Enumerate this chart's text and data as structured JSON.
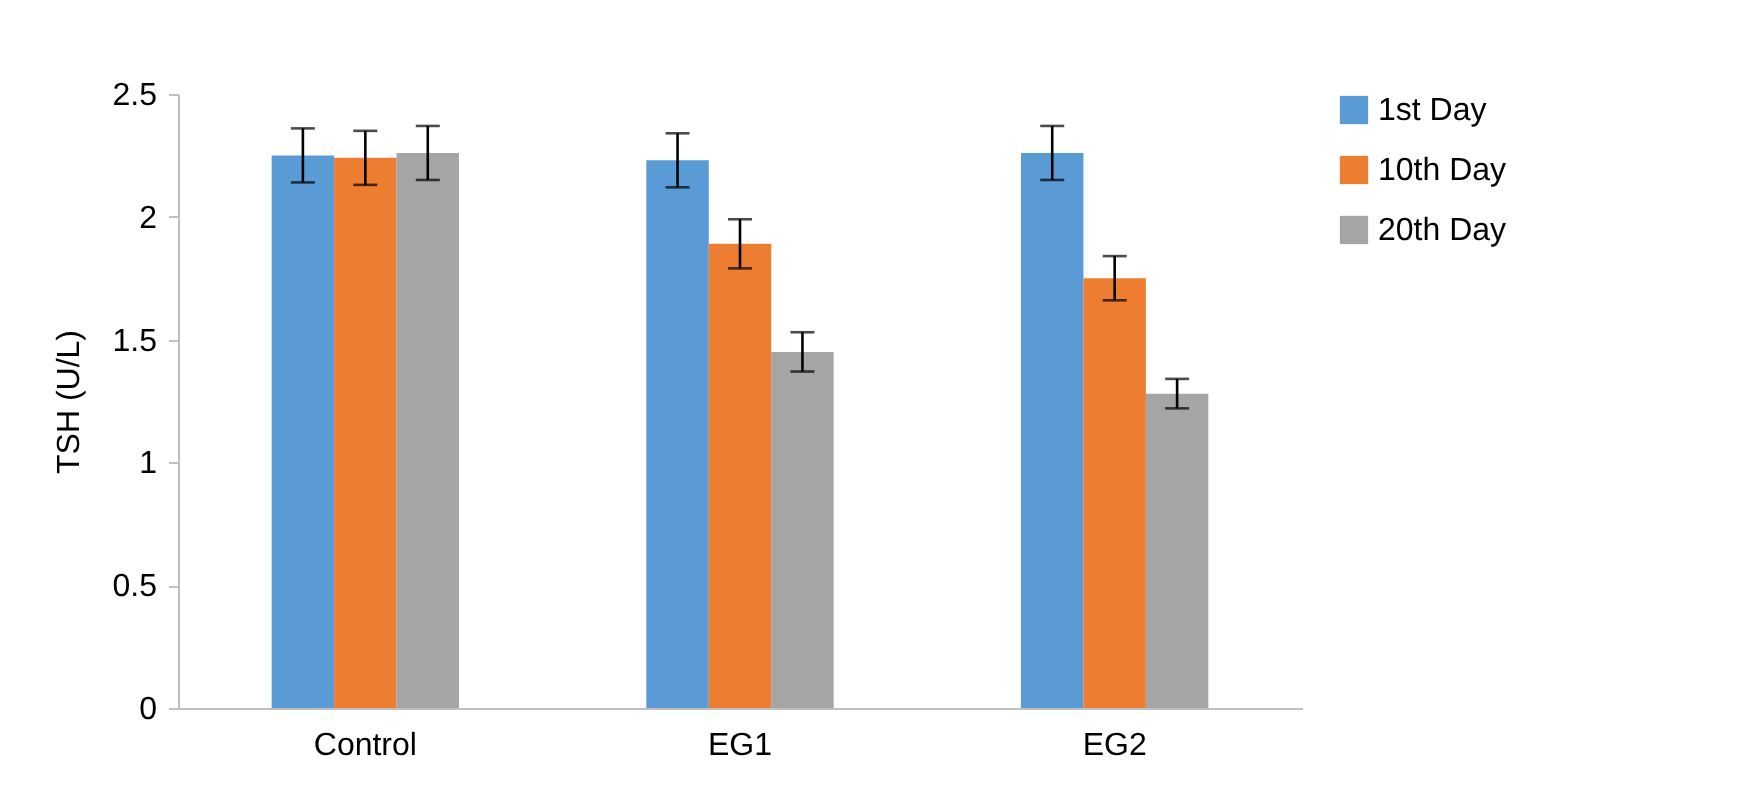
{
  "chart_data": {
    "type": "bar",
    "ylabel": "TSH (U/L)",
    "categories": [
      "Control",
      "EG1",
      "EG2"
    ],
    "series": [
      {
        "name": "1st Day",
        "color": "#5b9bd5",
        "values": [
          2.25,
          2.23,
          2.26
        ],
        "errors": [
          0.11,
          0.11,
          0.11
        ]
      },
      {
        "name": "10th Day",
        "color": "#ed7d31",
        "values": [
          2.24,
          1.89,
          1.75
        ],
        "errors": [
          0.11,
          0.1,
          0.09
        ]
      },
      {
        "name": "20th Day",
        "color": "#a5a5a5",
        "values": [
          2.26,
          1.45,
          1.28
        ],
        "errors": [
          0.11,
          0.08,
          0.06
        ]
      }
    ],
    "ylim": [
      0,
      2.5
    ],
    "yticks": [
      0,
      0.5,
      1,
      1.5,
      2,
      2.5
    ],
    "grid": false,
    "legend": "right"
  }
}
